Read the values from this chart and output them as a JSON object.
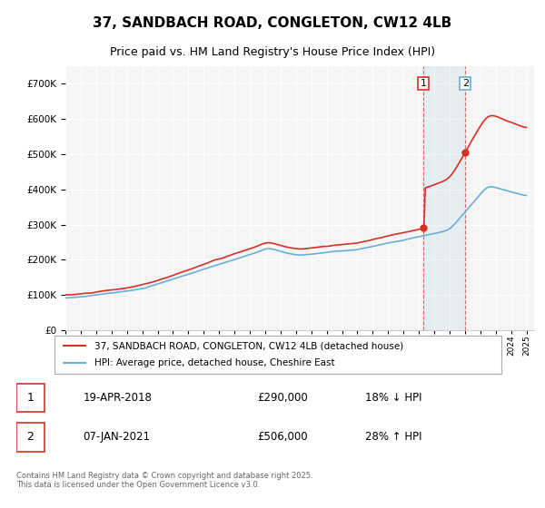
{
  "title": "37, SANDBACH ROAD, CONGLETON, CW12 4LB",
  "subtitle": "Price paid vs. HM Land Registry's House Price Index (HPI)",
  "legend_line1": "37, SANDBACH ROAD, CONGLETON, CW12 4LB (detached house)",
  "legend_line2": "HPI: Average price, detached house, Cheshire East",
  "annotation1_label": "1",
  "annotation1_date": "19-APR-2018",
  "annotation1_price": 290000,
  "annotation1_pct": "18% ↓ HPI",
  "annotation1_year": 2018.3,
  "annotation2_label": "2",
  "annotation2_date": "07-JAN-2021",
  "annotation2_price": 506000,
  "annotation2_pct": "28% ↑ HPI",
  "annotation2_year": 2021.02,
  "footer": "Contains HM Land Registry data © Crown copyright and database right 2025.\nThis data is licensed under the Open Government Licence v3.0.",
  "hpi_color": "#6baed6",
  "paid_color": "#d73027",
  "bg_color": "#ffffff",
  "plot_bg_color": "#f5f5f5",
  "grid_color": "#ffffff",
  "xmin": 1995,
  "xmax": 2025.5,
  "ymin": 0,
  "ymax": 750000
}
